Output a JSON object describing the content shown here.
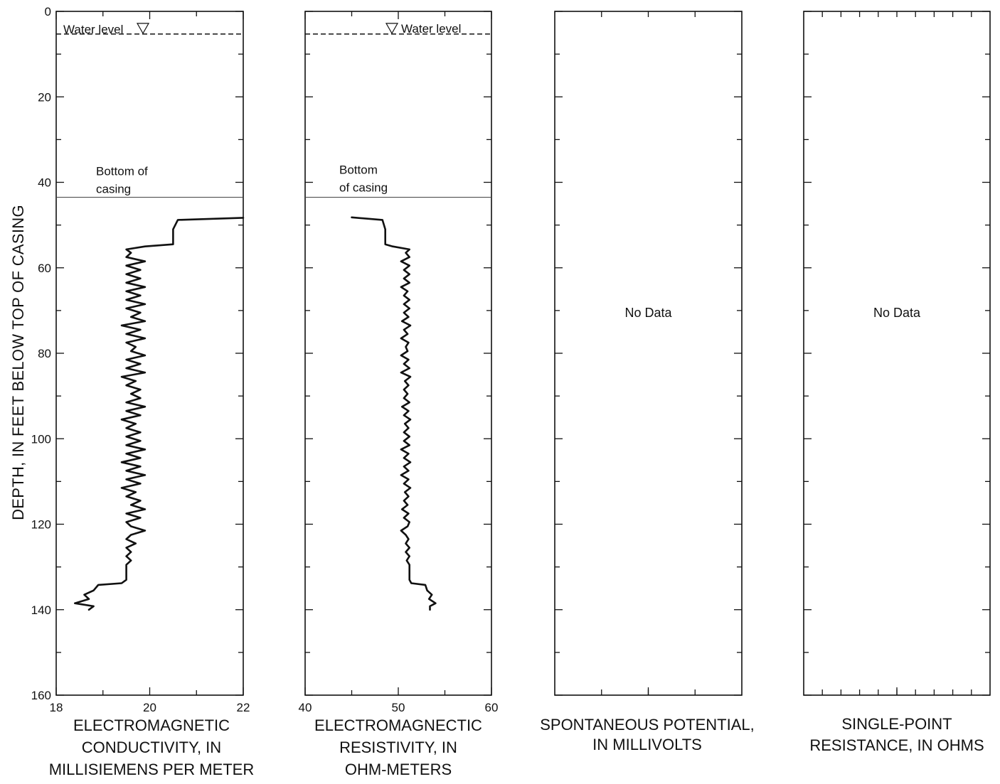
{
  "chart_data": {
    "type": "line",
    "shared_y": {
      "label": "DEPTH, IN FEET BELOW TOP OF CASING",
      "range": [
        0,
        160
      ],
      "inverted": true,
      "major_ticks": [
        0,
        20,
        40,
        60,
        80,
        100,
        120,
        140,
        160
      ],
      "minor_step": 10
    },
    "panels": [
      {
        "id": "conductivity",
        "xlabel_lines": [
          "ELECTROMAGNETIC",
          "CONDUCTIVITY, IN",
          "MILLISIEMENS PER METER"
        ],
        "xlim": [
          18,
          22
        ],
        "x_ticks": [
          "18",
          "20",
          "22"
        ],
        "annotations": {
          "water_level": "Water level",
          "water_level_depth": 5.3,
          "casing_lines": [
            "Bottom of",
            "casing"
          ],
          "casing_depth": 43.5
        },
        "series": [
          {
            "points": [
              [
                22.0,
                48.3
              ],
              [
                20.6,
                48.8
              ],
              [
                20.5,
                51
              ],
              [
                20.5,
                54.5
              ],
              [
                19.9,
                55
              ],
              [
                19.5,
                55.7
              ],
              [
                19.6,
                56.5
              ],
              [
                19.5,
                57.5
              ],
              [
                19.9,
                58.5
              ],
              [
                19.5,
                59.5
              ],
              [
                19.8,
                60.5
              ],
              [
                19.5,
                61.5
              ],
              [
                19.8,
                62.5
              ],
              [
                19.5,
                63.5
              ],
              [
                19.9,
                64.5
              ],
              [
                19.5,
                65.5
              ],
              [
                19.8,
                66.5
              ],
              [
                19.5,
                67.5
              ],
              [
                19.9,
                68.5
              ],
              [
                19.5,
                69.5
              ],
              [
                19.8,
                70.5
              ],
              [
                19.6,
                71.5
              ],
              [
                19.9,
                72.5
              ],
              [
                19.4,
                73.5
              ],
              [
                19.8,
                74.5
              ],
              [
                19.5,
                75.5
              ],
              [
                19.9,
                76.5
              ],
              [
                19.5,
                77.5
              ],
              [
                19.7,
                78.5
              ],
              [
                19.6,
                79.5
              ],
              [
                19.9,
                80.5
              ],
              [
                19.5,
                81.5
              ],
              [
                19.8,
                82.5
              ],
              [
                19.5,
                83.5
              ],
              [
                19.9,
                84.5
              ],
              [
                19.4,
                85.5
              ],
              [
                19.7,
                86.5
              ],
              [
                19.5,
                87.5
              ],
              [
                19.8,
                88.5
              ],
              [
                19.6,
                89.5
              ],
              [
                19.8,
                90.5
              ],
              [
                19.5,
                91.5
              ],
              [
                19.9,
                92.5
              ],
              [
                19.5,
                93.5
              ],
              [
                19.8,
                94.5
              ],
              [
                19.4,
                95.5
              ],
              [
                19.7,
                96.5
              ],
              [
                19.5,
                97.5
              ],
              [
                19.8,
                98.5
              ],
              [
                19.5,
                99.5
              ],
              [
                19.8,
                100.5
              ],
              [
                19.5,
                101.5
              ],
              [
                19.9,
                102.5
              ],
              [
                19.5,
                103.5
              ],
              [
                19.8,
                104.5
              ],
              [
                19.4,
                105.5
              ],
              [
                19.8,
                106.5
              ],
              [
                19.5,
                107.5
              ],
              [
                19.9,
                108.5
              ],
              [
                19.5,
                109.5
              ],
              [
                19.8,
                110.5
              ],
              [
                19.4,
                111.5
              ],
              [
                19.7,
                112.5
              ],
              [
                19.5,
                113.5
              ],
              [
                19.8,
                114.5
              ],
              [
                19.6,
                115.5
              ],
              [
                19.9,
                116.5
              ],
              [
                19.5,
                117.5
              ],
              [
                19.8,
                118.5
              ],
              [
                19.5,
                119.5
              ],
              [
                19.6,
                120.5
              ],
              [
                19.9,
                121.5
              ],
              [
                19.6,
                122.5
              ],
              [
                19.5,
                123.5
              ],
              [
                19.7,
                124.5
              ],
              [
                19.5,
                125.5
              ],
              [
                19.6,
                126.5
              ],
              [
                19.5,
                127.5
              ],
              [
                19.6,
                128.5
              ],
              [
                19.5,
                129.5
              ],
              [
                19.5,
                131
              ],
              [
                19.5,
                133
              ],
              [
                19.4,
                133.8
              ],
              [
                18.9,
                134.2
              ],
              [
                18.8,
                135.5
              ],
              [
                18.6,
                136.5
              ],
              [
                18.7,
                137.5
              ],
              [
                18.4,
                138.5
              ],
              [
                18.8,
                139.2
              ],
              [
                18.7,
                140.0
              ]
            ]
          }
        ]
      },
      {
        "id": "resistivity",
        "xlabel_lines": [
          "ELECTROMAGNECTIC",
          "RESISTIVITY, IN",
          "OHM-METERS"
        ],
        "xlim": [
          40,
          60
        ],
        "x_ticks": [
          "40",
          "50",
          "60"
        ],
        "annotations": {
          "water_level": "Water level",
          "water_level_depth": 5.3,
          "casing_lines": [
            "Bottom",
            "of casing"
          ],
          "casing_depth": 43.5
        },
        "series": [
          {
            "points": [
              [
                45.0,
                48.2
              ],
              [
                48.3,
                48.8
              ],
              [
                48.6,
                51
              ],
              [
                48.6,
                54.5
              ],
              [
                49.4,
                55
              ],
              [
                51.2,
                55.7
              ],
              [
                50.8,
                56.5
              ],
              [
                51.2,
                57.5
              ],
              [
                50.3,
                58.5
              ],
              [
                51.2,
                59.5
              ],
              [
                50.6,
                60.5
              ],
              [
                51.2,
                61.5
              ],
              [
                50.6,
                62.5
              ],
              [
                51.2,
                63.5
              ],
              [
                50.3,
                64.5
              ],
              [
                51.0,
                65.5
              ],
              [
                50.6,
                66.5
              ],
              [
                51.2,
                67.5
              ],
              [
                50.6,
                68.5
              ],
              [
                51.2,
                69.5
              ],
              [
                50.6,
                70.5
              ],
              [
                51.1,
                71.5
              ],
              [
                50.4,
                72.5
              ],
              [
                51.3,
                73.5
              ],
              [
                50.6,
                74.5
              ],
              [
                51.0,
                75.5
              ],
              [
                50.3,
                76.5
              ],
              [
                51.1,
                77.5
              ],
              [
                50.8,
                78.5
              ],
              [
                51.0,
                79.5
              ],
              [
                50.3,
                80.5
              ],
              [
                51.1,
                81.5
              ],
              [
                50.6,
                82.5
              ],
              [
                51.2,
                83.5
              ],
              [
                50.3,
                84.5
              ],
              [
                51.3,
                85.5
              ],
              [
                50.7,
                86.5
              ],
              [
                51.1,
                87.5
              ],
              [
                50.6,
                88.5
              ],
              [
                51.0,
                89.5
              ],
              [
                50.6,
                90.5
              ],
              [
                51.2,
                91.5
              ],
              [
                50.4,
                92.5
              ],
              [
                51.1,
                93.5
              ],
              [
                50.6,
                94.5
              ],
              [
                51.3,
                95.5
              ],
              [
                50.7,
                96.5
              ],
              [
                51.1,
                97.5
              ],
              [
                50.6,
                98.5
              ],
              [
                51.2,
                99.5
              ],
              [
                50.6,
                100.5
              ],
              [
                51.2,
                101.5
              ],
              [
                50.3,
                102.5
              ],
              [
                51.1,
                103.5
              ],
              [
                50.6,
                104.5
              ],
              [
                51.3,
                105.5
              ],
              [
                50.6,
                106.5
              ],
              [
                51.1,
                107.5
              ],
              [
                50.3,
                108.5
              ],
              [
                51.1,
                109.5
              ],
              [
                50.6,
                110.5
              ],
              [
                51.3,
                111.5
              ],
              [
                50.7,
                112.5
              ],
              [
                51.1,
                113.5
              ],
              [
                50.6,
                114.5
              ],
              [
                51.0,
                115.5
              ],
              [
                50.4,
                116.5
              ],
              [
                51.1,
                117.5
              ],
              [
                50.6,
                118.5
              ],
              [
                51.2,
                119.5
              ],
              [
                51.0,
                120.5
              ],
              [
                50.3,
                121.5
              ],
              [
                50.8,
                122.5
              ],
              [
                51.1,
                123.5
              ],
              [
                50.8,
                124.5
              ],
              [
                51.2,
                125.5
              ],
              [
                50.8,
                126.5
              ],
              [
                51.2,
                127.5
              ],
              [
                50.9,
                128.5
              ],
              [
                51.2,
                129.5
              ],
              [
                51.2,
                131
              ],
              [
                51.2,
                133
              ],
              [
                51.4,
                133.8
              ],
              [
                52.9,
                134.2
              ],
              [
                53.1,
                135.5
              ],
              [
                53.6,
                136.5
              ],
              [
                53.3,
                137.5
              ],
              [
                54.0,
                138.5
              ],
              [
                53.4,
                139.2
              ],
              [
                53.4,
                140.0
              ]
            ]
          }
        ]
      },
      {
        "id": "spontaneous-potential",
        "xlabel_lines": [
          "SPONTANEOUS POTENTIAL,",
          "IN MILLIVOLTS"
        ],
        "no_data_text": "No Data",
        "minor_x_ticks": 4
      },
      {
        "id": "single-point-resistance",
        "xlabel_lines": [
          "SINGLE-POINT",
          "RESISTANCE, IN OHMS"
        ],
        "no_data_text": "No Data",
        "minor_x_ticks": 10
      }
    ]
  }
}
